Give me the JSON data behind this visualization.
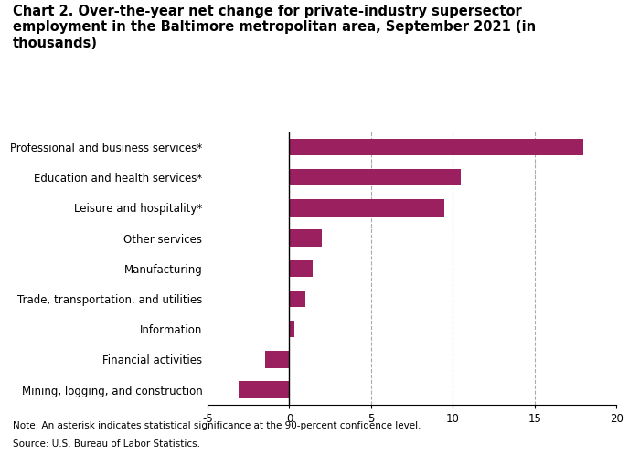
{
  "title_line1": "Chart 2. Over-the-year net change for private-industry supersector",
  "title_line2": "employment in the Baltimore metropolitan area, September 2021 (in",
  "title_line3": "thousands)",
  "categories": [
    "Mining, logging, and construction",
    "Financial activities",
    "Information",
    "Trade, transportation, and utilities",
    "Manufacturing",
    "Other services",
    "Leisure and hospitality*",
    "Education and health services*",
    "Professional and business services*"
  ],
  "values": [
    -3.1,
    -1.5,
    0.3,
    1.0,
    1.4,
    2.0,
    9.5,
    10.5,
    18.0
  ],
  "bar_color": "#9B2060",
  "xlim": [
    -5,
    20
  ],
  "xticks": [
    -5,
    0,
    5,
    10,
    15,
    20
  ],
  "xtick_labels": [
    "-5",
    "0",
    "5",
    "10",
    "15",
    "20"
  ],
  "vgrid_lines": [
    5,
    10,
    15
  ],
  "note": "Note: An asterisk indicates statistical significance at the 90-percent confidence level.",
  "source": "Source: U.S. Bureau of Labor Statistics.",
  "background_color": "#ffffff",
  "grid_color": "#aaaaaa",
  "title_fontsize": 10.5,
  "label_fontsize": 8.5,
  "tick_fontsize": 8.5,
  "note_fontsize": 7.5,
  "bar_height": 0.55
}
